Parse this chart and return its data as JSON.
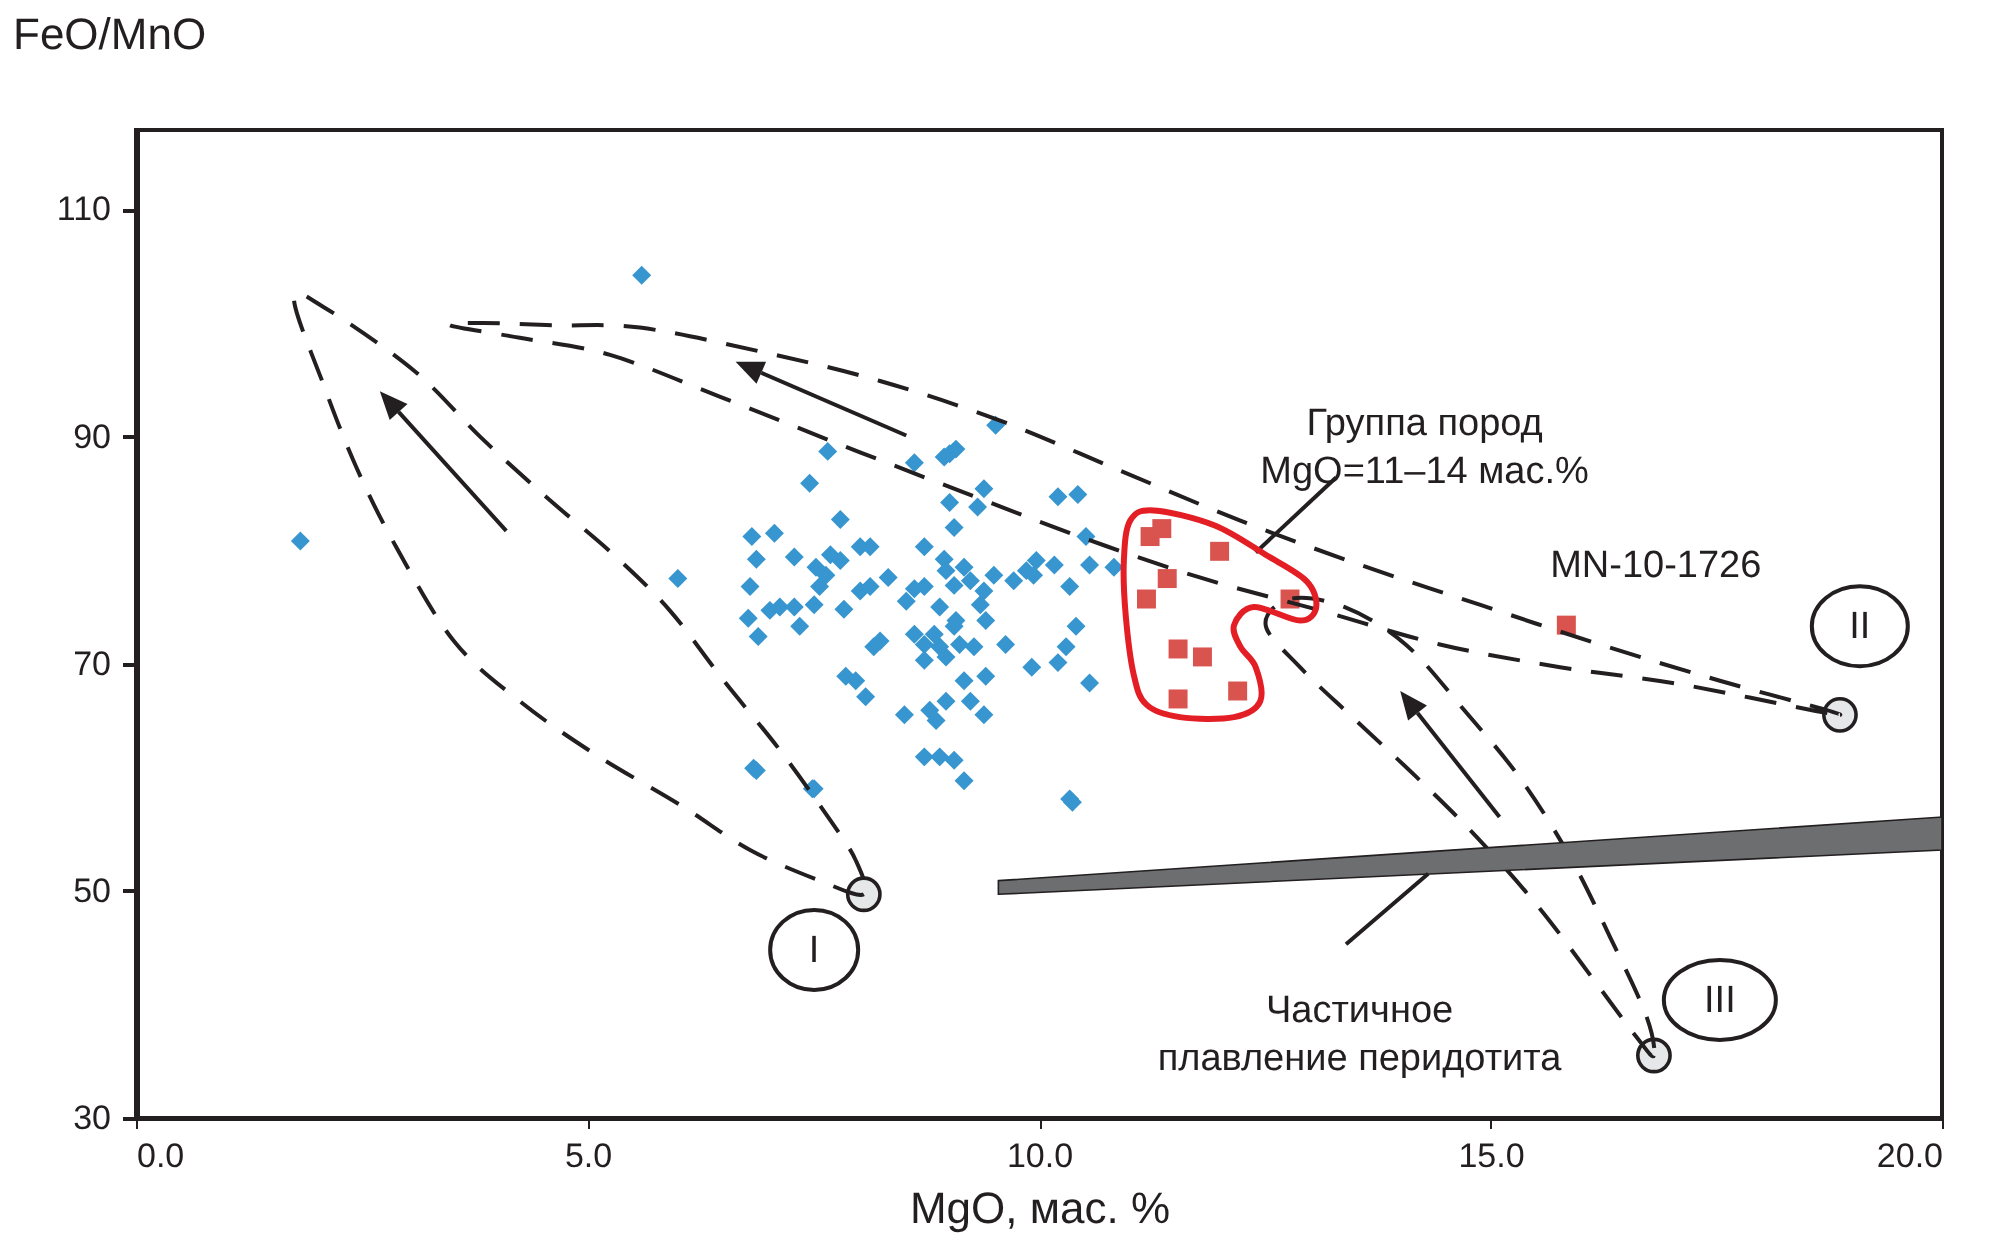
{
  "chart_data": {
    "type": "scatter",
    "xlabel": "MgO, мас. %",
    "ylabel": "FeO/MnO",
    "xlim": [
      0,
      20
    ],
    "ylim": [
      30,
      117
    ],
    "xticks": [
      {
        "value": 0,
        "label": "0.0"
      },
      {
        "value": 5,
        "label": "5.0"
      },
      {
        "value": 10,
        "label": "10.0"
      },
      {
        "value": 15,
        "label": "15.0"
      },
      {
        "value": 20,
        "label": "20.0"
      }
    ],
    "yticks": [
      30,
      50,
      70,
      90,
      110
    ],
    "grid": false,
    "series": [
      {
        "color": "#3795cf",
        "marker": "diamond",
        "x": [
          1.82,
          5.6,
          6.0,
          6.84,
          7.49,
          10.34,
          9.52,
          7.66,
          8.62,
          9.01,
          8.95,
          9.08,
          7.46,
          9.39,
          10.21,
          10.43,
          9.01,
          9.32,
          9.06,
          7.8,
          6.82,
          7.07,
          6.87,
          7.29,
          6.8,
          6.78,
          6.89,
          7.02,
          7.13,
          7.29,
          7.35,
          7.51,
          7.57,
          7.64,
          7.69,
          7.8,
          7.53,
          7.84,
          8.02,
          8.13,
          8.02,
          8.13,
          8.33,
          8.62,
          8.73,
          8.53,
          8.73,
          8.95,
          8.97,
          9.17,
          9.06,
          9.24,
          9.5,
          9.39,
          9.35,
          8.9,
          9.08,
          9.41,
          9.72,
          9.86,
          9.97,
          10.17,
          9.94,
          10.52,
          10.56,
          10.83,
          10.34,
          10.41,
          10.3,
          10.21,
          10.56,
          9.92,
          9.63,
          9.28,
          9.41,
          9.17,
          9.24,
          9.39,
          8.97,
          8.79,
          8.86,
          8.51,
          8.24,
          8.17,
          8.62,
          8.73,
          8.84,
          8.9,
          8.97,
          9.12,
          9.06,
          8.73,
          7.86,
          7.97,
          8.08,
          8.73,
          8.9,
          9.06,
          9.17,
          6.87,
          7.51,
          10.37
        ],
        "values": [
          80.8,
          104.2,
          77.5,
          60.8,
          59.0,
          58.1,
          91.0,
          88.7,
          87.7,
          88.5,
          88.2,
          88.9,
          85.9,
          85.4,
          84.7,
          84.9,
          84.2,
          83.8,
          82.0,
          82.7,
          81.2,
          81.5,
          79.2,
          79.4,
          76.8,
          74.0,
          72.4,
          74.7,
          75.0,
          75.0,
          73.3,
          75.2,
          76.8,
          77.8,
          79.6,
          79.1,
          78.5,
          74.8,
          80.3,
          80.3,
          76.4,
          76.8,
          77.6,
          76.6,
          76.8,
          75.5,
          80.3,
          79.2,
          78.2,
          78.5,
          76.9,
          77.3,
          77.8,
          76.4,
          75.2,
          75.0,
          73.8,
          73.8,
          77.3,
          78.2,
          79.1,
          78.7,
          77.8,
          81.2,
          78.7,
          78.5,
          76.8,
          73.3,
          71.5,
          70.1,
          68.3,
          69.7,
          71.7,
          71.5,
          68.9,
          68.5,
          66.7,
          65.5,
          66.7,
          65.9,
          65.0,
          65.5,
          72.0,
          71.5,
          72.6,
          71.7,
          72.6,
          71.5,
          70.6,
          71.7,
          73.3,
          70.3,
          68.9,
          68.5,
          67.1,
          61.8,
          61.8,
          61.5,
          59.7,
          60.6,
          59.0,
          57.8
        ]
      },
      {
        "color": "#d9534f",
        "marker": "square",
        "x": [
          11.23,
          11.36,
          12.0,
          11.42,
          11.19,
          12.78,
          11.54,
          11.81,
          11.54,
          12.2,
          15.84
        ],
        "values": [
          81.2,
          81.9,
          79.9,
          77.5,
          75.7,
          75.7,
          71.3,
          70.6,
          66.9,
          67.6,
          73.4
        ]
      },
      {
        "color": "#e6e7e8",
        "marker": "circle",
        "x": [
          8.06,
          18.87,
          16.81
        ],
        "values": [
          49.7,
          65.5,
          35.5
        ]
      }
    ],
    "annotations": [
      "Группа пород\nMgO=11–14 мас.%",
      "MN-10-1726",
      "Частичное\nплавление перидотита",
      "I",
      "II",
      "III"
    ]
  }
}
